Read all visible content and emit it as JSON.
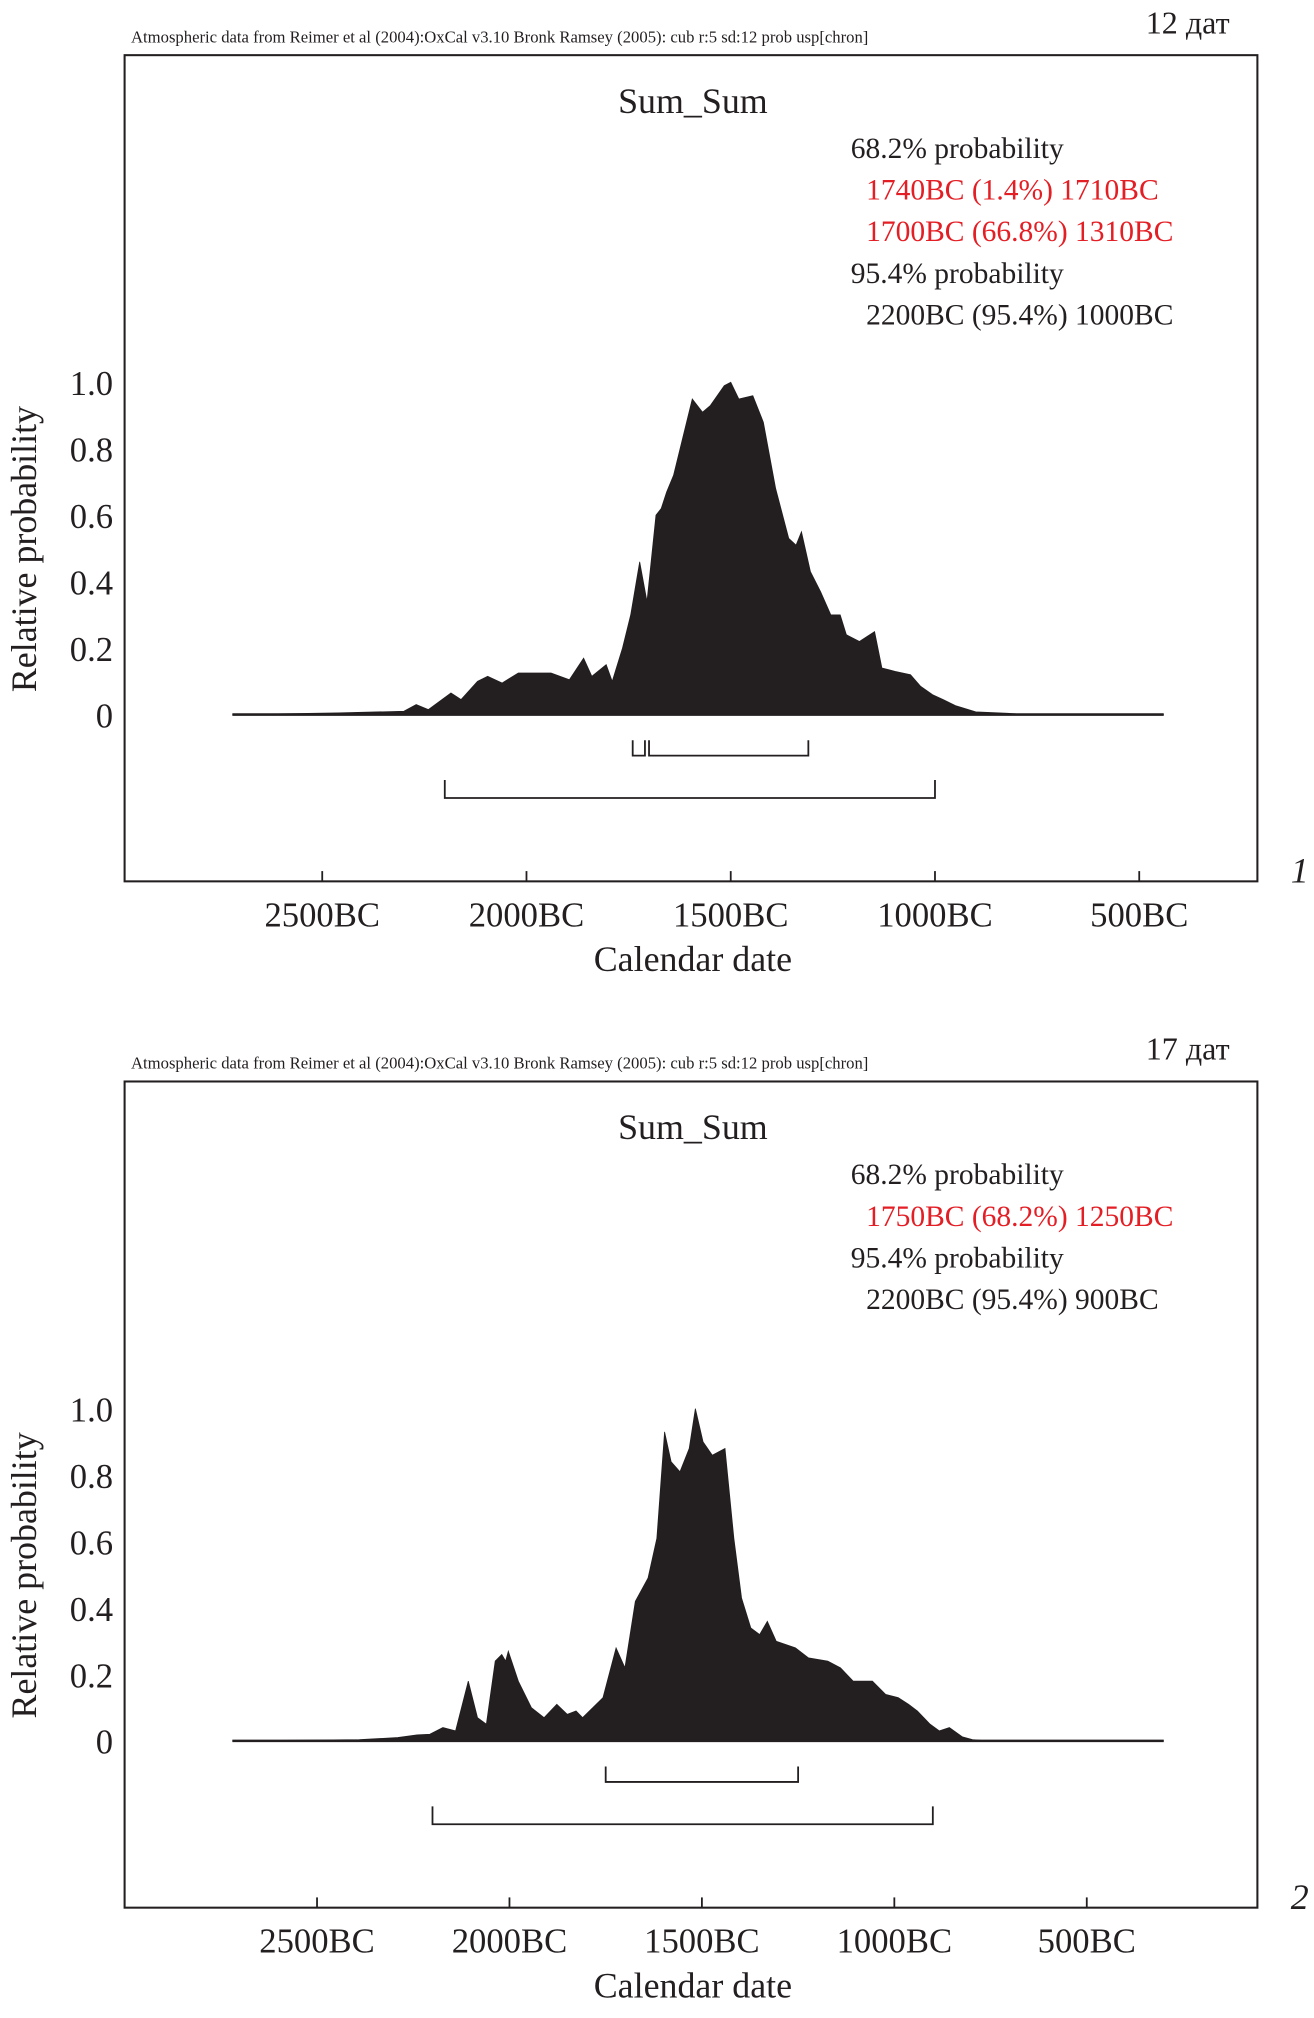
{
  "colors": {
    "ink": "#231f20",
    "highlight": "#e31e24"
  },
  "chart_data": [
    {
      "type": "area",
      "header": "Atmospheric data from Reimer et al (2004):OxCal v3.10 Bronk Ramsey (2005): cub r:5 sd:12 prob usp[chron]",
      "count_label": "12 дат",
      "panel_label": "1",
      "title": "Sum_Sum",
      "xlabel": "Calendar date",
      "ylabel": "Relative probability",
      "xlim_years_bc": [
        2720,
        440
      ],
      "ylim": [
        0,
        1
      ],
      "xticks": [
        {
          "year": 2500,
          "label": "2500BC"
        },
        {
          "year": 2000,
          "label": "2000BC"
        },
        {
          "year": 1500,
          "label": "1500BC"
        },
        {
          "year": 1000,
          "label": "1000BC"
        },
        {
          "year": 500,
          "label": "500BC"
        }
      ],
      "yticks": [
        {
          "value": 0,
          "label": "0"
        },
        {
          "value": 0.2,
          "label": "0.2"
        },
        {
          "value": 0.4,
          "label": "0.4"
        },
        {
          "value": 0.6,
          "label": "0.6"
        },
        {
          "value": 0.8,
          "label": "0.8"
        },
        {
          "value": 1.0,
          "label": "1.0"
        }
      ],
      "legend": [
        {
          "text": "68.2% probability",
          "highlight": false,
          "indent": false
        },
        {
          "text": "1740BC (1.4%) 1710BC",
          "highlight": true,
          "indent": true
        },
        {
          "text": "1700BC (66.8%) 1310BC",
          "highlight": true,
          "indent": true
        },
        {
          "text": "95.4% probability",
          "highlight": false,
          "indent": false
        },
        {
          "text": "2200BC (95.4%) 1000BC",
          "highlight": false,
          "indent": true
        }
      ],
      "ranges_68": [
        [
          1740,
          1710
        ],
        [
          1700,
          1310
        ]
      ],
      "ranges_95": [
        [
          2200,
          1000
        ]
      ],
      "x_years_bc": [
        2720,
        2460,
        2300,
        2270,
        2240,
        2185,
        2160,
        2120,
        2095,
        2060,
        2020,
        1940,
        1895,
        1860,
        1840,
        1805,
        1790,
        1765,
        1745,
        1723,
        1705,
        1683,
        1670,
        1657,
        1640,
        1594,
        1569,
        1550,
        1516,
        1500,
        1480,
        1446,
        1420,
        1390,
        1358,
        1340,
        1327,
        1305,
        1280,
        1255,
        1232,
        1217,
        1185,
        1148,
        1130,
        1098,
        1060,
        1035,
        1006,
        980,
        950,
        900,
        823,
        775,
        440
      ],
      "values": [
        0,
        0.005,
        0.01,
        0.03,
        0.015,
        0.065,
        0.045,
        0.1,
        0.115,
        0.095,
        0.125,
        0.125,
        0.105,
        0.17,
        0.115,
        0.15,
        0.1,
        0.2,
        0.3,
        0.46,
        0.34,
        0.6,
        0.62,
        0.67,
        0.72,
        0.95,
        0.91,
        0.93,
        0.99,
        1.0,
        0.95,
        0.96,
        0.88,
        0.68,
        0.53,
        0.51,
        0.55,
        0.43,
        0.37,
        0.3,
        0.3,
        0.24,
        0.22,
        0.25,
        0.14,
        0.13,
        0.12,
        0.085,
        0.06,
        0.045,
        0.027,
        0.008,
        0.004,
        0,
        0
      ]
    },
    {
      "type": "area",
      "header": "Atmospheric data from Reimer et al (2004):OxCal v3.10 Bronk Ramsey (2005): cub r:5 sd:12 prob usp[chron]",
      "count_label": "17 дат",
      "panel_label": "2",
      "title": "Sum_Sum",
      "xlabel": "Calendar date",
      "ylabel": "Relative probability",
      "xlim_years_bc": [
        2720,
        300
      ],
      "ylim": [
        0,
        1
      ],
      "xticks": [
        {
          "year": 2500,
          "label": "2500BC"
        },
        {
          "year": 2000,
          "label": "2000BC"
        },
        {
          "year": 1500,
          "label": "1500BC"
        },
        {
          "year": 1000,
          "label": "1000BC"
        },
        {
          "year": 500,
          "label": "500BC"
        }
      ],
      "yticks": [
        {
          "value": 0,
          "label": "0"
        },
        {
          "value": 0.2,
          "label": "0.2"
        },
        {
          "value": 0.4,
          "label": "0.4"
        },
        {
          "value": 0.6,
          "label": "0.6"
        },
        {
          "value": 0.8,
          "label": "0.8"
        },
        {
          "value": 1.0,
          "label": "1.0"
        }
      ],
      "legend": [
        {
          "text": "68.2% probability",
          "highlight": false,
          "indent": false
        },
        {
          "text": "1750BC (68.2%) 1250BC",
          "highlight": true,
          "indent": true
        },
        {
          "text": "95.4% probability",
          "highlight": false,
          "indent": false
        },
        {
          "text": "2200BC (95.4%) 900BC",
          "highlight": false,
          "indent": true
        }
      ],
      "ranges_68": [
        [
          1750,
          1250
        ]
      ],
      "ranges_95": [
        [
          2200,
          900
        ]
      ],
      "x_years_bc": [
        2720,
        2390,
        2290,
        2240,
        2207,
        2173,
        2140,
        2107,
        2083,
        2060,
        2037,
        2020,
        2010,
        2003,
        1977,
        1943,
        1910,
        1877,
        1850,
        1827,
        1810,
        1757,
        1723,
        1700,
        1673,
        1640,
        1617,
        1597,
        1580,
        1557,
        1533,
        1517,
        1497,
        1473,
        1440,
        1417,
        1397,
        1373,
        1350,
        1330,
        1307,
        1257,
        1223,
        1173,
        1140,
        1107,
        1057,
        1023,
        990,
        963,
        940,
        907,
        883,
        857,
        823,
        797,
        757,
        300
      ],
      "values": [
        0,
        0.004,
        0.01,
        0.018,
        0.02,
        0.04,
        0.03,
        0.18,
        0.07,
        0.05,
        0.24,
        0.26,
        0.24,
        0.27,
        0.18,
        0.1,
        0.07,
        0.11,
        0.08,
        0.09,
        0.07,
        0.13,
        0.28,
        0.22,
        0.42,
        0.49,
        0.61,
        0.93,
        0.84,
        0.81,
        0.88,
        1.0,
        0.9,
        0.86,
        0.88,
        0.61,
        0.43,
        0.34,
        0.32,
        0.36,
        0.3,
        0.28,
        0.25,
        0.24,
        0.22,
        0.18,
        0.18,
        0.14,
        0.13,
        0.11,
        0.09,
        0.05,
        0.03,
        0.04,
        0.012,
        0.004,
        0,
        0
      ]
    }
  ]
}
